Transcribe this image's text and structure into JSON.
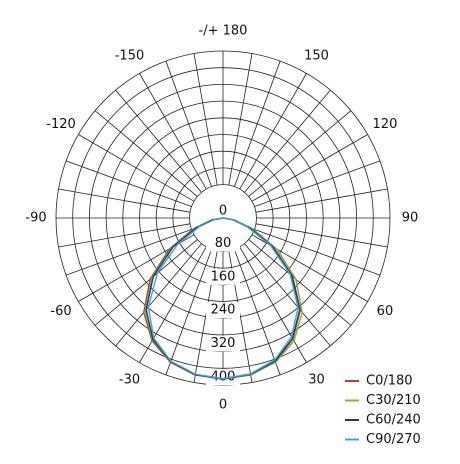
{
  "chart_data": {
    "type": "polar",
    "x": [
      -90,
      -80,
      -70,
      -60,
      -50,
      -40,
      -30,
      -20,
      -10,
      0,
      10,
      20,
      30,
      40,
      50,
      60,
      70,
      80,
      90
    ],
    "series": [
      {
        "name": "C0/180",
        "color": "#b5452a",
        "values": [
          0,
          28,
          75,
          148,
          228,
          295,
          340,
          368,
          382,
          385,
          382,
          366,
          335,
          288,
          218,
          140,
          70,
          25,
          0
        ]
      },
      {
        "name": "C30/210",
        "color": "#8aa83a",
        "values": [
          0,
          25,
          72,
          142,
          222,
          290,
          338,
          367,
          381,
          386,
          381,
          368,
          340,
          295,
          228,
          150,
          75,
          28,
          0
        ]
      },
      {
        "name": "C60/240",
        "color": "#1f3a6e",
        "values": [
          0,
          24,
          68,
          138,
          218,
          286,
          336,
          366,
          381,
          386,
          380,
          365,
          333,
          286,
          215,
          138,
          68,
          24,
          0
        ]
      },
      {
        "name": "C90/270",
        "color": "#3fa3d6",
        "values": [
          0,
          20,
          60,
          125,
          205,
          278,
          332,
          365,
          380,
          385,
          379,
          362,
          328,
          280,
          210,
          132,
          62,
          22,
          0
        ]
      }
    ],
    "rlim": [
      0,
      400
    ],
    "rticks": [
      0,
      80,
      160,
      240,
      320,
      400
    ],
    "minor_rticks": [
      120,
      200,
      280,
      360
    ],
    "angle_ticks": [
      0,
      30,
      60,
      90,
      120,
      150,
      {
        "value": 180,
        "label": "-/+ 180"
      },
      -150,
      -120,
      -90,
      -60,
      -30
    ],
    "angle_grid_step": 10,
    "legend": "bottom-right"
  }
}
